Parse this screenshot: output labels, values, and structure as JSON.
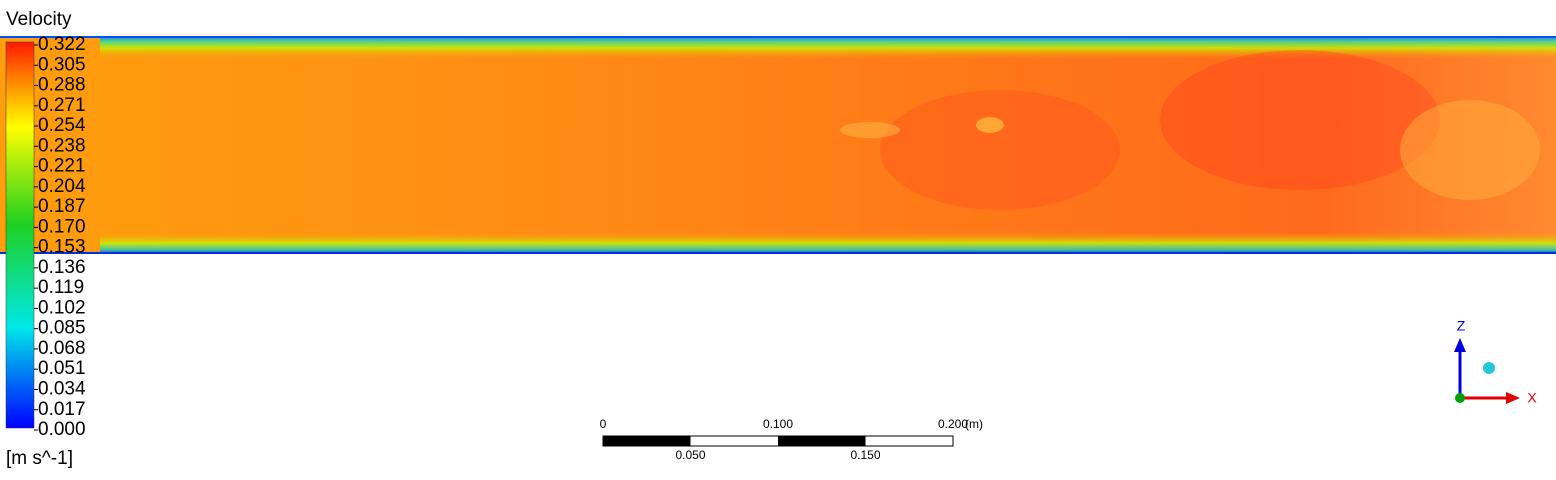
{
  "legend": {
    "title": "Velocity",
    "labels": [
      "0.322",
      "0.305",
      "0.288",
      "0.271",
      "0.254",
      "0.238",
      "0.221",
      "0.204",
      "0.187",
      "0.170",
      "0.153",
      "0.136",
      "0.119",
      "0.102",
      "0.085",
      "0.068",
      "0.051",
      "0.034",
      "0.017",
      "0.000"
    ],
    "unit": "[m s^-1]"
  },
  "scale_bar": {
    "top_labels": [
      "0",
      "0.100",
      "0.200"
    ],
    "unit": "(m)",
    "bottom_labels": [
      "0.050",
      "0.150"
    ]
  },
  "triad": {
    "vertical": "Z",
    "horizontal": "X"
  }
}
